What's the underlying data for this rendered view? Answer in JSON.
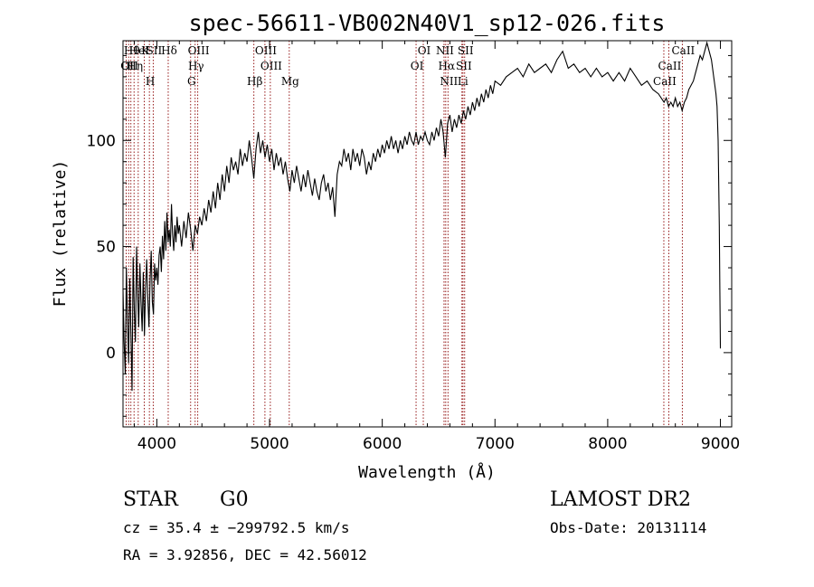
{
  "chart_data": {
    "type": "line",
    "title": "spec-56611-VB002N40V1_sp12-026.fits",
    "xlabel": "Wavelength (Å)",
    "ylabel": "Flux (relative)",
    "xlim": [
      3700,
      9100
    ],
    "ylim": [
      -35,
      147
    ],
    "xticks": [
      4000,
      5000,
      6000,
      7000,
      8000,
      9000
    ],
    "yticks": [
      0,
      50,
      100
    ],
    "grid": false,
    "series": [
      {
        "points": [
          [
            3700,
            30
          ],
          [
            3710,
            5
          ],
          [
            3720,
            -10
          ],
          [
            3730,
            40
          ],
          [
            3740,
            15
          ],
          [
            3750,
            -5
          ],
          [
            3760,
            35
          ],
          [
            3770,
            10
          ],
          [
            3780,
            -18
          ],
          [
            3790,
            45
          ],
          [
            3800,
            20
          ],
          [
            3810,
            5
          ],
          [
            3820,
            50
          ],
          [
            3830,
            28
          ],
          [
            3840,
            12
          ],
          [
            3850,
            42
          ],
          [
            3860,
            24
          ],
          [
            3870,
            10
          ],
          [
            3880,
            38
          ],
          [
            3890,
            8
          ],
          [
            3900,
            30
          ],
          [
            3910,
            44
          ],
          [
            3920,
            26
          ],
          [
            3930,
            12
          ],
          [
            3940,
            34
          ],
          [
            3950,
            48
          ],
          [
            3960,
            24
          ],
          [
            3970,
            18
          ],
          [
            3980,
            42
          ],
          [
            3990,
            34
          ],
          [
            4000,
            40
          ],
          [
            4010,
            32
          ],
          [
            4020,
            46
          ],
          [
            4030,
            50
          ],
          [
            4040,
            38
          ],
          [
            4050,
            55
          ],
          [
            4060,
            44
          ],
          [
            4070,
            62
          ],
          [
            4080,
            48
          ],
          [
            4090,
            66
          ],
          [
            4100,
            52
          ],
          [
            4110,
            58
          ],
          [
            4120,
            50
          ],
          [
            4130,
            70
          ],
          [
            4140,
            56
          ],
          [
            4150,
            48
          ],
          [
            4160,
            60
          ],
          [
            4170,
            52
          ],
          [
            4180,
            64
          ],
          [
            4190,
            56
          ],
          [
            4200,
            60
          ],
          [
            4220,
            50
          ],
          [
            4240,
            62
          ],
          [
            4260,
            54
          ],
          [
            4280,
            66
          ],
          [
            4300,
            58
          ],
          [
            4320,
            48
          ],
          [
            4340,
            60
          ],
          [
            4360,
            56
          ],
          [
            4380,
            64
          ],
          [
            4400,
            60
          ],
          [
            4420,
            68
          ],
          [
            4440,
            62
          ],
          [
            4460,
            72
          ],
          [
            4480,
            66
          ],
          [
            4500,
            76
          ],
          [
            4520,
            68
          ],
          [
            4540,
            80
          ],
          [
            4560,
            72
          ],
          [
            4580,
            84
          ],
          [
            4600,
            76
          ],
          [
            4620,
            88
          ],
          [
            4640,
            80
          ],
          [
            4660,
            92
          ],
          [
            4680,
            86
          ],
          [
            4700,
            90
          ],
          [
            4720,
            84
          ],
          [
            4740,
            96
          ],
          [
            4760,
            88
          ],
          [
            4780,
            94
          ],
          [
            4800,
            90
          ],
          [
            4820,
            100
          ],
          [
            4840,
            92
          ],
          [
            4860,
            82
          ],
          [
            4880,
            96
          ],
          [
            4900,
            104
          ],
          [
            4920,
            94
          ],
          [
            4940,
            100
          ],
          [
            4960,
            92
          ],
          [
            4980,
            98
          ],
          [
            5000,
            90
          ],
          [
            5020,
            96
          ],
          [
            5040,
            86
          ],
          [
            5060,
            94
          ],
          [
            5080,
            88
          ],
          [
            5100,
            92
          ],
          [
            5120,
            84
          ],
          [
            5140,
            90
          ],
          [
            5160,
            82
          ],
          [
            5180,
            76
          ],
          [
            5200,
            86
          ],
          [
            5220,
            80
          ],
          [
            5240,
            88
          ],
          [
            5260,
            82
          ],
          [
            5280,
            76
          ],
          [
            5300,
            84
          ],
          [
            5320,
            78
          ],
          [
            5340,
            86
          ],
          [
            5360,
            80
          ],
          [
            5380,
            74
          ],
          [
            5400,
            82
          ],
          [
            5420,
            76
          ],
          [
            5440,
            72
          ],
          [
            5460,
            80
          ],
          [
            5480,
            84
          ],
          [
            5500,
            76
          ],
          [
            5520,
            80
          ],
          [
            5540,
            72
          ],
          [
            5560,
            78
          ],
          [
            5580,
            64
          ],
          [
            5600,
            84
          ],
          [
            5620,
            90
          ],
          [
            5640,
            88
          ],
          [
            5660,
            96
          ],
          [
            5680,
            90
          ],
          [
            5700,
            94
          ],
          [
            5720,
            86
          ],
          [
            5740,
            96
          ],
          [
            5760,
            90
          ],
          [
            5780,
            94
          ],
          [
            5800,
            88
          ],
          [
            5820,
            96
          ],
          [
            5840,
            92
          ],
          [
            5860,
            84
          ],
          [
            5880,
            90
          ],
          [
            5900,
            86
          ],
          [
            5920,
            94
          ],
          [
            5940,
            90
          ],
          [
            5960,
            96
          ],
          [
            5980,
            92
          ],
          [
            6000,
            98
          ],
          [
            6020,
            94
          ],
          [
            6040,
            100
          ],
          [
            6060,
            96
          ],
          [
            6080,
            102
          ],
          [
            6100,
            96
          ],
          [
            6120,
            100
          ],
          [
            6140,
            94
          ],
          [
            6160,
            100
          ],
          [
            6180,
            96
          ],
          [
            6200,
            102
          ],
          [
            6220,
            98
          ],
          [
            6240,
            104
          ],
          [
            6260,
            100
          ],
          [
            6280,
            98
          ],
          [
            6300,
            104
          ],
          [
            6320,
            98
          ],
          [
            6340,
            102
          ],
          [
            6360,
            100
          ],
          [
            6380,
            104
          ],
          [
            6400,
            100
          ],
          [
            6420,
            98
          ],
          [
            6440,
            104
          ],
          [
            6460,
            100
          ],
          [
            6480,
            106
          ],
          [
            6500,
            102
          ],
          [
            6520,
            110
          ],
          [
            6540,
            104
          ],
          [
            6560,
            92
          ],
          [
            6580,
            108
          ],
          [
            6600,
            112
          ],
          [
            6620,
            104
          ],
          [
            6640,
            110
          ],
          [
            6660,
            106
          ],
          [
            6680,
            112
          ],
          [
            6700,
            108
          ],
          [
            6720,
            114
          ],
          [
            6740,
            110
          ],
          [
            6760,
            116
          ],
          [
            6780,
            112
          ],
          [
            6800,
            118
          ],
          [
            6820,
            114
          ],
          [
            6840,
            120
          ],
          [
            6860,
            116
          ],
          [
            6880,
            122
          ],
          [
            6900,
            118
          ],
          [
            6920,
            124
          ],
          [
            6940,
            120
          ],
          [
            6960,
            126
          ],
          [
            6980,
            122
          ],
          [
            7000,
            128
          ],
          [
            7050,
            126
          ],
          [
            7100,
            130
          ],
          [
            7150,
            132
          ],
          [
            7200,
            134
          ],
          [
            7250,
            130
          ],
          [
            7300,
            136
          ],
          [
            7350,
            132
          ],
          [
            7400,
            134
          ],
          [
            7450,
            136
          ],
          [
            7500,
            132
          ],
          [
            7550,
            138
          ],
          [
            7600,
            142
          ],
          [
            7650,
            134
          ],
          [
            7700,
            136
          ],
          [
            7750,
            132
          ],
          [
            7800,
            134
          ],
          [
            7850,
            130
          ],
          [
            7900,
            134
          ],
          [
            7950,
            130
          ],
          [
            8000,
            132
          ],
          [
            8050,
            128
          ],
          [
            8100,
            132
          ],
          [
            8150,
            128
          ],
          [
            8200,
            134
          ],
          [
            8250,
            130
          ],
          [
            8300,
            126
          ],
          [
            8350,
            128
          ],
          [
            8400,
            124
          ],
          [
            8450,
            122
          ],
          [
            8500,
            118
          ],
          [
            8520,
            120
          ],
          [
            8540,
            116
          ],
          [
            8560,
            118
          ],
          [
            8580,
            116
          ],
          [
            8600,
            120
          ],
          [
            8620,
            116
          ],
          [
            8640,
            118
          ],
          [
            8660,
            114
          ],
          [
            8680,
            118
          ],
          [
            8700,
            120
          ],
          [
            8720,
            124
          ],
          [
            8740,
            126
          ],
          [
            8760,
            128
          ],
          [
            8780,
            132
          ],
          [
            8800,
            136
          ],
          [
            8820,
            140
          ],
          [
            8840,
            138
          ],
          [
            8860,
            142
          ],
          [
            8880,
            146
          ],
          [
            8900,
            142
          ],
          [
            8920,
            138
          ],
          [
            8940,
            130
          ],
          [
            8960,
            122
          ],
          [
            8970,
            116
          ],
          [
            8980,
            100
          ],
          [
            8990,
            60
          ],
          [
            8995,
            30
          ],
          [
            9000,
            2
          ]
        ]
      }
    ],
    "line_groups": [
      {
        "x": 3750,
        "col": 0,
        "row": 1,
        "label": "OII"
      },
      {
        "x": 3798,
        "col": 1,
        "row": 1,
        "label": "Hη"
      },
      {
        "x": 3770,
        "col": 0,
        "row": 0,
        "label": "Hθ"
      },
      {
        "x": 3728,
        "col": 0,
        "row": 1,
        "label": "OI"
      },
      {
        "x": 3835,
        "col": 1,
        "row": 0,
        "label": "HeI"
      },
      {
        "x": 3889,
        "col": 2,
        "row": 0,
        "label": "K"
      },
      {
        "x": 3934,
        "col": 2,
        "row": 2,
        "label": "H"
      },
      {
        "x": 3968,
        "col": 3,
        "row": 0,
        "label": "SII"
      },
      {
        "x": 4101,
        "col": 3,
        "row": 0,
        "label": "Hδ"
      },
      {
        "x": 4300,
        "col": 4,
        "row": 2,
        "label": "G"
      },
      {
        "x": 4340,
        "col": 4,
        "row": 1,
        "label": "Hγ"
      },
      {
        "x": 4363,
        "col": 4,
        "row": 0,
        "label": "OIII"
      },
      {
        "x": 4861,
        "col": 5,
        "row": 2,
        "label": "Hβ"
      },
      {
        "x": 4959,
        "col": 6,
        "row": 0,
        "label": "OIII"
      },
      {
        "x": 5007,
        "col": 6,
        "row": 1,
        "label": "OIII"
      },
      {
        "x": 5175,
        "col": 7,
        "row": 2,
        "label": "Mg"
      },
      {
        "x": 6300,
        "col": 8,
        "row": 1,
        "label": "OI"
      },
      {
        "x": 6364,
        "col": 8,
        "row": 0,
        "label": "OI"
      },
      {
        "x": 6548,
        "col": 9,
        "row": 0,
        "label": "NII"
      },
      {
        "x": 6563,
        "col": 9,
        "row": 1,
        "label": "Hα"
      },
      {
        "x": 6583,
        "col": 9,
        "row": 2,
        "label": "NII"
      },
      {
        "x": 6707,
        "col": 10,
        "row": 2,
        "label": "Li"
      },
      {
        "x": 6716,
        "col": 10,
        "row": 1,
        "label": "SII"
      },
      {
        "x": 6731,
        "col": 10,
        "row": 0,
        "label": "SII"
      },
      {
        "x": 8498,
        "col": 11,
        "row": 2,
        "label": "CaII"
      },
      {
        "x": 8542,
        "col": 11,
        "row": 1,
        "label": "CaII"
      },
      {
        "x": 8662,
        "col": 11,
        "row": 0,
        "label": "CaII"
      }
    ],
    "line_color": "#8b0000"
  },
  "info": {
    "class": "STAR",
    "subclass": "G0",
    "survey": "LAMOST DR2",
    "cz": "cz = 35.4 ± −299792.5 km/s",
    "obsdate": "Obs-Date: 20131114",
    "radec": "RA =   3.92856, DEC =  42.56012"
  }
}
